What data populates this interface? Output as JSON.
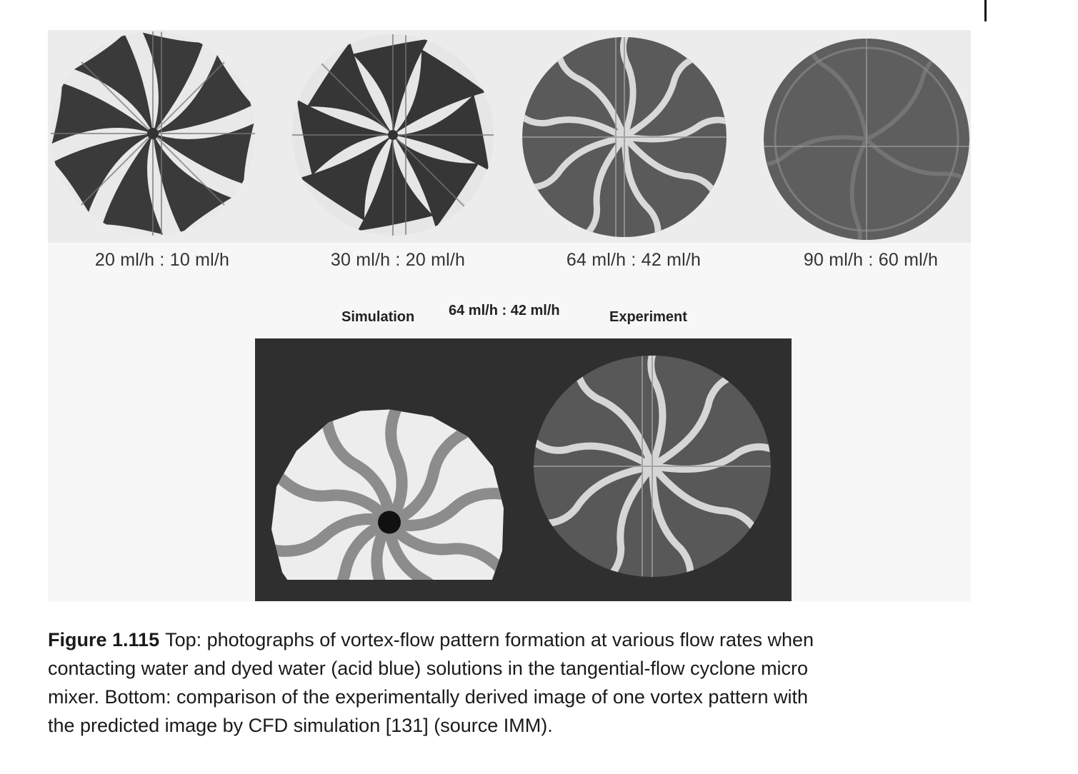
{
  "figure": {
    "number": "Figure 1.115",
    "caption": "Top: photographs of vortex-flow pattern formation at various flow rates when contacting water and dyed water (acid blue) solutions in the tangential-flow cyclone micro mixer. Bottom: comparison of the experimentally derived image of one vortex pattern with the predicted image by CFD simulation [131] (source IMM)."
  },
  "top_row": {
    "labels": [
      "20 ml/h : 10 ml/h",
      "30 ml/h : 20 ml/h",
      "64 ml/h : 42 ml/h",
      "90 ml/h : 60 ml/h"
    ]
  },
  "comparison": {
    "left_label": "Simulation",
    "center_label": "64 ml/h : 42 ml/h",
    "right_label": "Experiment"
  }
}
